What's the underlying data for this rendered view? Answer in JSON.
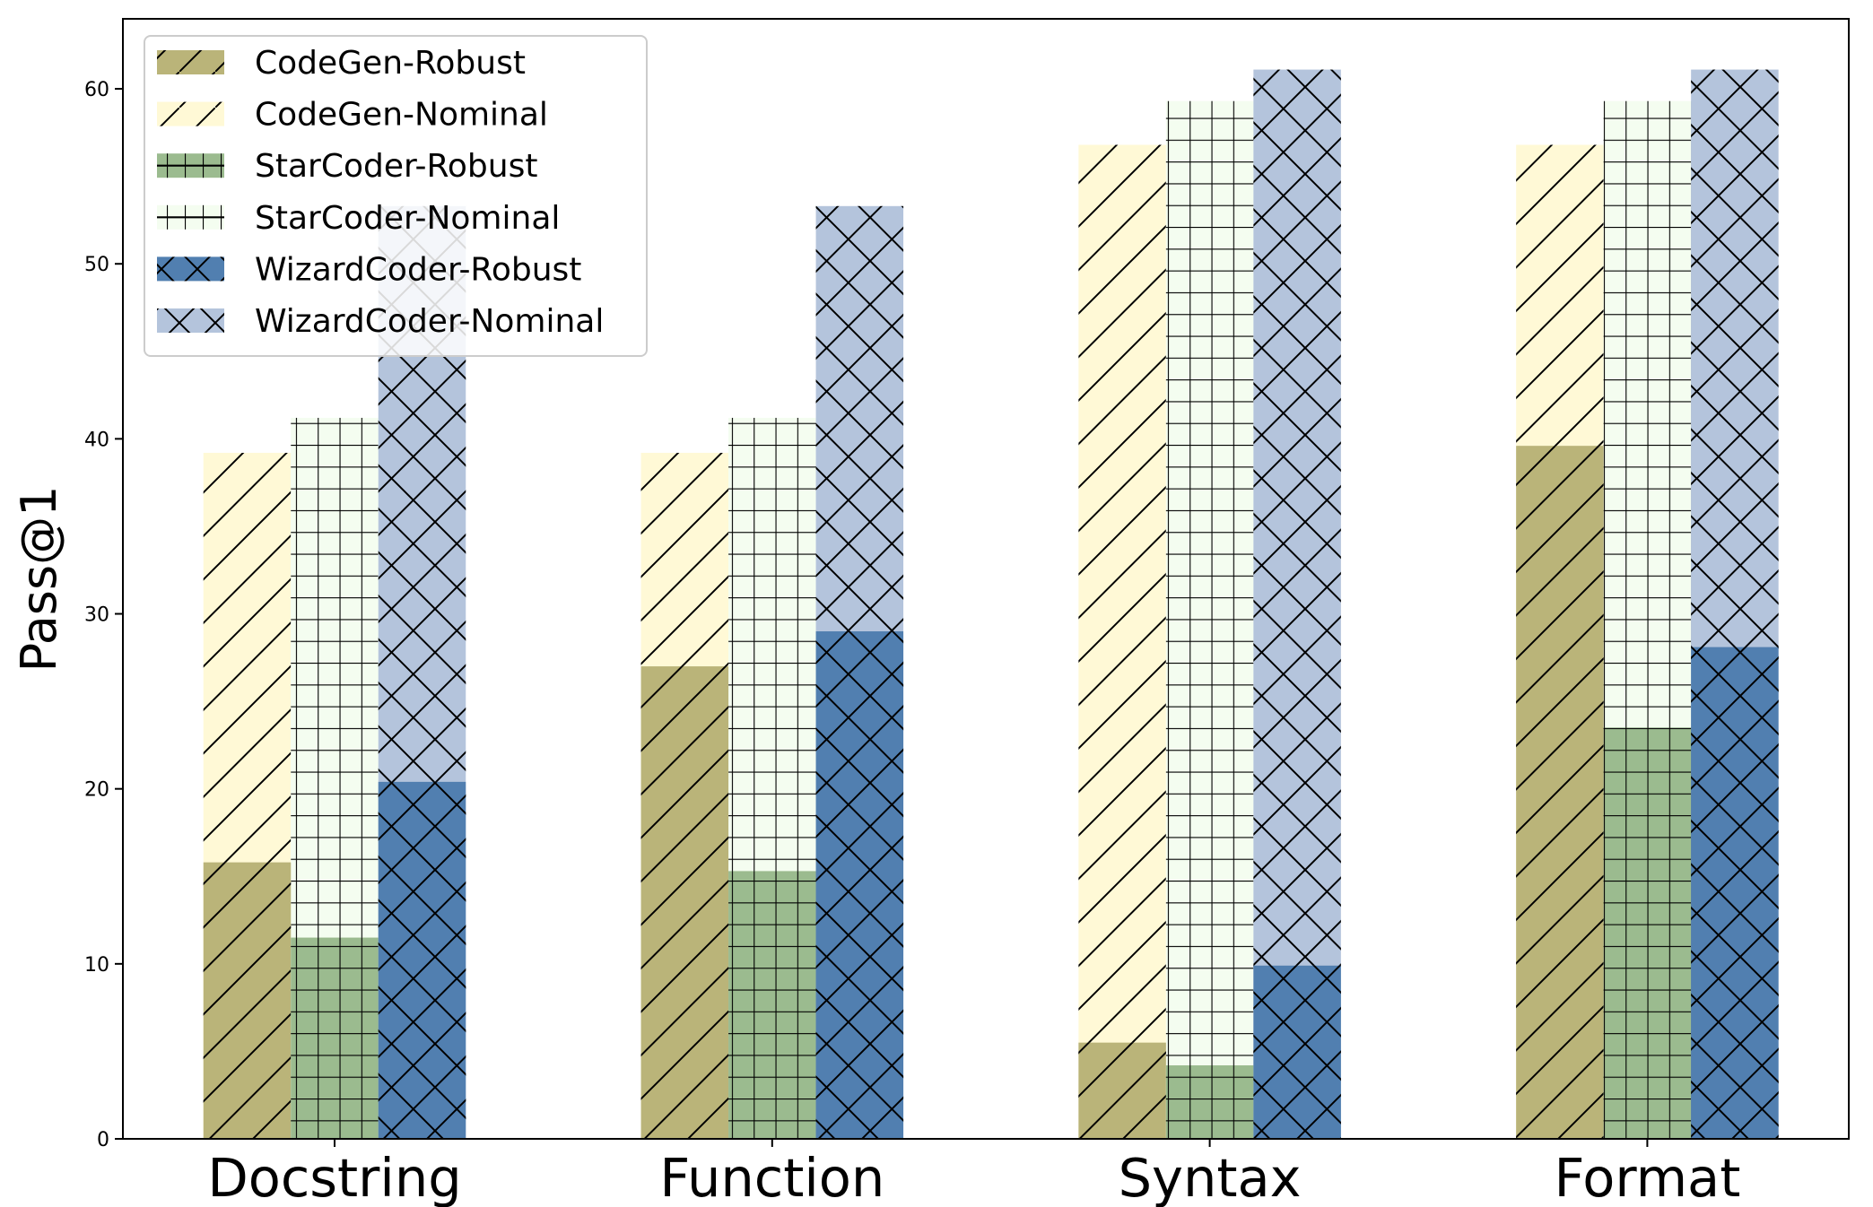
{
  "chart_data": {
    "type": "bar",
    "title": "",
    "xlabel": "",
    "ylabel": "Pass@1",
    "ylim": [
      0,
      64
    ],
    "yticks": [
      0,
      10,
      20,
      30,
      40,
      50,
      60
    ],
    "grid": false,
    "legend_position": "top-left",
    "categories": [
      "Docstring",
      "Function",
      "Syntax",
      "Format"
    ],
    "series": [
      {
        "name": "CodeGen-Robust",
        "color": "#bab479",
        "hatch": "diagonal",
        "group": 0,
        "values": [
          15.8,
          27.0,
          5.5,
          39.6
        ]
      },
      {
        "name": "CodeGen-Nominal",
        "color": "#fff9d6",
        "hatch": "diagonal",
        "group": 0,
        "values": [
          39.2,
          39.2,
          56.8,
          56.8
        ]
      },
      {
        "name": "StarCoder-Robust",
        "color": "#9bbb8f",
        "hatch": "grid",
        "group": 1,
        "values": [
          11.5,
          15.3,
          4.2,
          23.5
        ]
      },
      {
        "name": "StarCoder-Nominal",
        "color": "#f4fdf0",
        "hatch": "grid",
        "group": 1,
        "values": [
          41.2,
          41.2,
          59.3,
          59.3
        ]
      },
      {
        "name": "WizardCoder-Robust",
        "color": "#517fb0",
        "hatch": "cross",
        "group": 2,
        "values": [
          20.4,
          29.0,
          9.9,
          28.1
        ]
      },
      {
        "name": "WizardCoder-Nominal",
        "color": "#b4c4dc",
        "hatch": "cross",
        "group": 2,
        "values": [
          53.3,
          53.3,
          61.1,
          61.1
        ]
      }
    ]
  }
}
